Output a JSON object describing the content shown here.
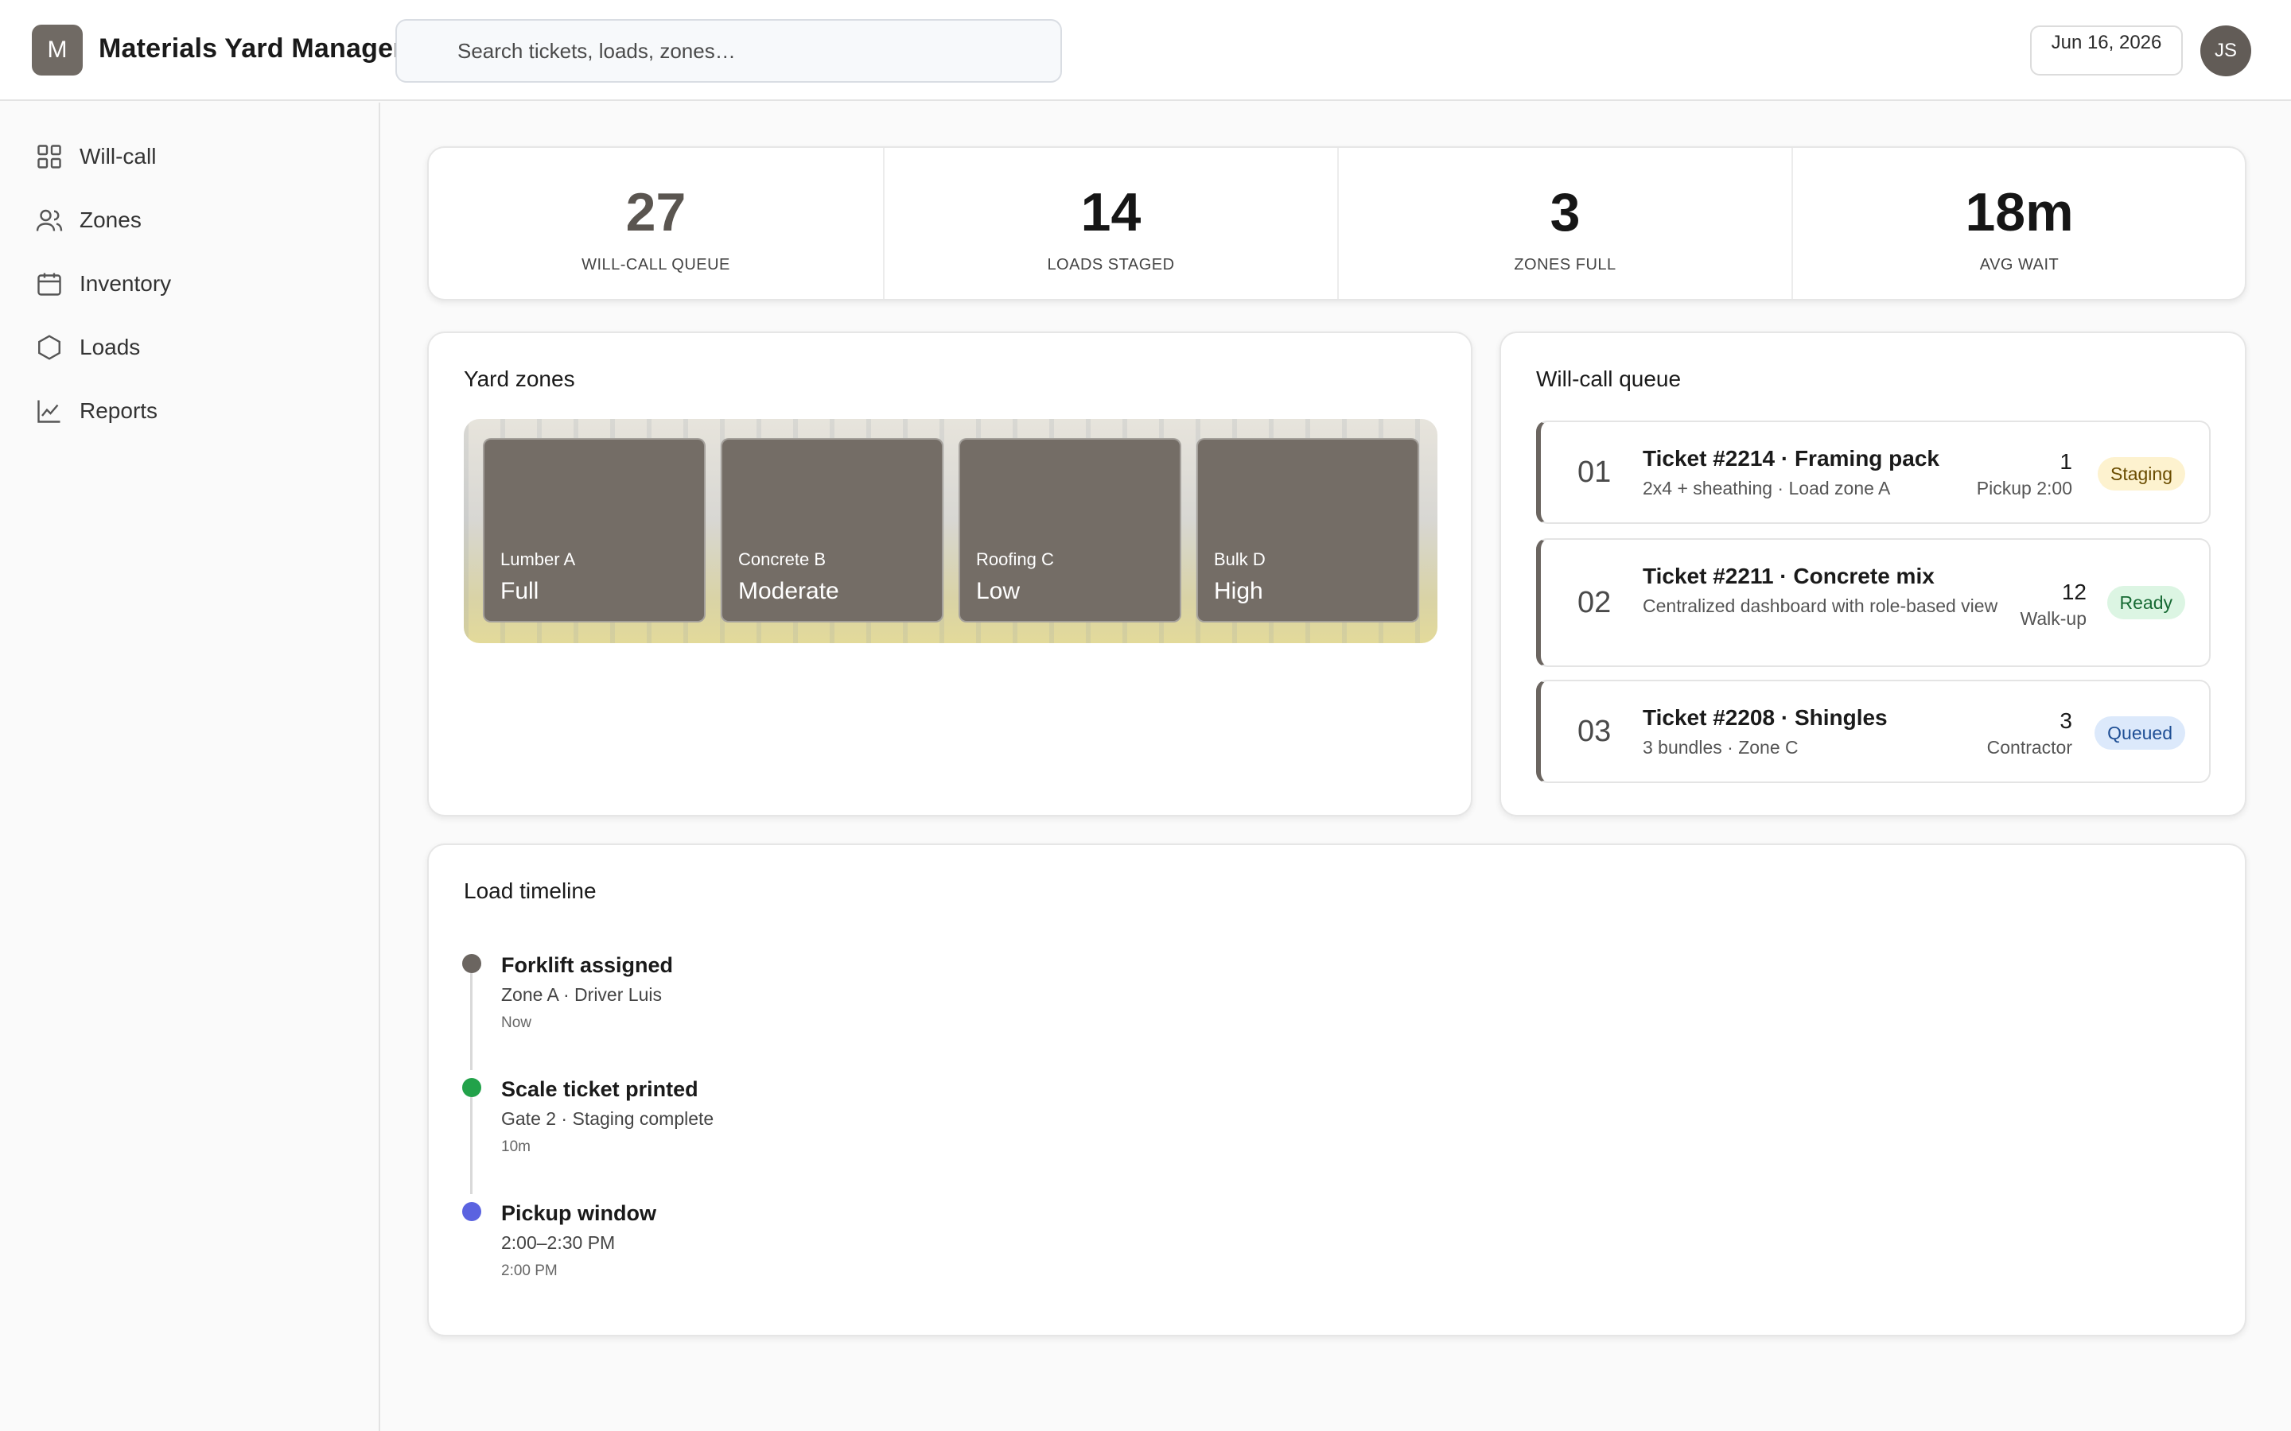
{
  "header": {
    "logo_letter": "M",
    "app_title": "Materials Yard Manager",
    "search_placeholder": "Search tickets, loads, zones…",
    "date": "Jun 16, 2026",
    "user_initials": "JS"
  },
  "sidebar": {
    "items": [
      {
        "label": "Will-call",
        "icon": "grid-icon"
      },
      {
        "label": "Zones",
        "icon": "users-icon"
      },
      {
        "label": "Inventory",
        "icon": "calendar-icon"
      },
      {
        "label": "Loads",
        "icon": "hexagon-icon"
      },
      {
        "label": "Reports",
        "icon": "chart-icon"
      }
    ]
  },
  "kpis": [
    {
      "value": "27",
      "label": "WILL-CALL QUEUE"
    },
    {
      "value": "14",
      "label": "LOADS STAGED"
    },
    {
      "value": "3",
      "label": "ZONES FULL"
    },
    {
      "value": "18m",
      "label": "AVG WAIT"
    }
  ],
  "yard_zones": {
    "title": "Yard zones",
    "zones": [
      {
        "name": "Lumber A",
        "level": "Full"
      },
      {
        "name": "Concrete B",
        "level": "Moderate"
      },
      {
        "name": "Roofing C",
        "level": "Low"
      },
      {
        "name": "Bulk D",
        "level": "High"
      }
    ]
  },
  "queue": {
    "title": "Will-call queue",
    "items": [
      {
        "num": "01",
        "title": "Ticket #2214 · Framing pack",
        "sub": "2x4 + sheathing · Load zone A",
        "count": "1",
        "note": "Pickup 2:00",
        "status": "Staging"
      },
      {
        "num": "02",
        "title": "Ticket #2211 · Concrete mix",
        "sub": "Centralized dashboard with role-based view",
        "count": "12",
        "note": "Walk-up",
        "status": "Ready"
      },
      {
        "num": "03",
        "title": "Ticket #2208 · Shingles",
        "sub": "3 bundles · Zone C",
        "count": "3",
        "note": "Contractor",
        "status": "Queued"
      }
    ],
    "colors": {
      "staging": "#fdf2cf",
      "ready": "#dcf5e3",
      "queued": "#dce9fb"
    }
  },
  "timeline": {
    "title": "Load timeline",
    "events": [
      {
        "title": "Forklift assigned",
        "sub": "Zone A · Driver Luis",
        "time": "Now",
        "color": "#6b6560"
      },
      {
        "title": "Scale ticket printed",
        "sub": "Gate 2 · Staging complete",
        "time": "10m",
        "color": "#22a24a"
      },
      {
        "title": "Pickup window",
        "sub": "2:00–2:30 PM",
        "time": "2:00 PM",
        "color": "#5b63e0"
      }
    ]
  }
}
